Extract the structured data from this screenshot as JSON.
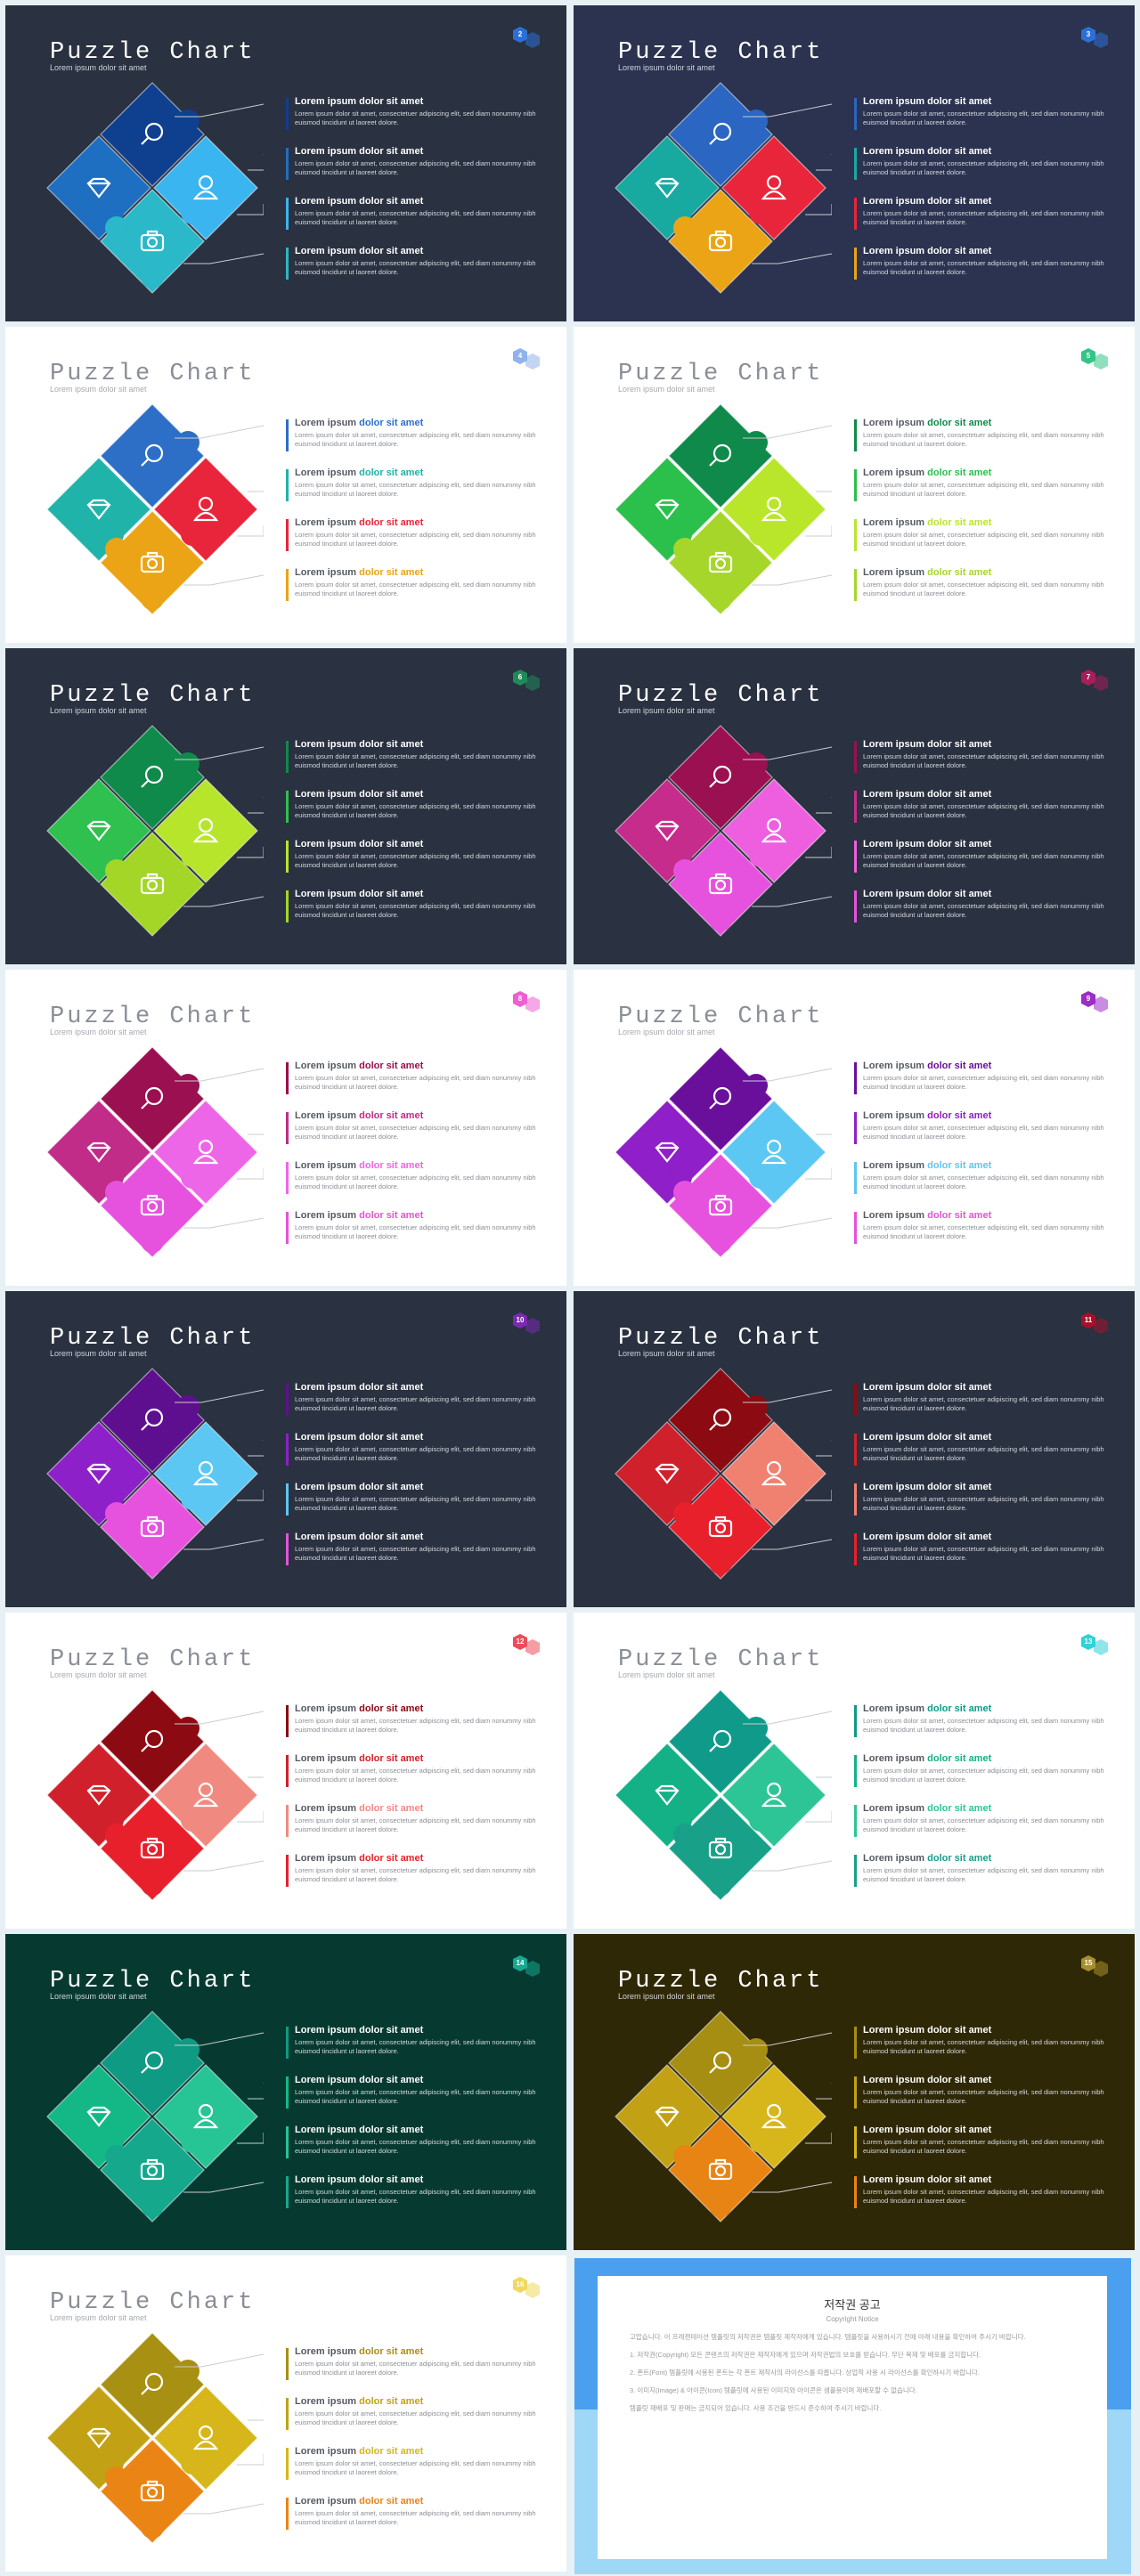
{
  "title": "Puzzle Chart",
  "subtitle": "Lorem ipsum dolor sit amet",
  "item_heading_plain": "Lorem ipsum ",
  "item_heading_accent": "dolor sit amet",
  "item_body": "Lorem ipsum dolor sit amet, consectetuer adipiscing elit, sed diam nonummy nibh euismod tincidunt ut laoreet dolore.",
  "icons": [
    "magnifier-icon",
    "diamond-icon",
    "person-icon",
    "camera-icon"
  ],
  "slides": [
    {
      "num": "2",
      "bg": "#2a3140",
      "dark": true,
      "badge": "#2c6fd6",
      "colors": [
        "#0f3f8f",
        "#1e6fc1",
        "#3ab5f0",
        "#2bb8c8"
      ]
    },
    {
      "num": "3",
      "bg": "#2b3350",
      "dark": true,
      "badge": "#2c6fd6",
      "colors": [
        "#2a66c2",
        "#18a9a0",
        "#e8253a",
        "#eaa415"
      ]
    },
    {
      "num": "4",
      "bg": "#ffffff",
      "dark": false,
      "badge": "#8fb3ea",
      "colors": [
        "#2d6fc6",
        "#20b3aa",
        "#e8253a",
        "#eaa415"
      ]
    },
    {
      "num": "5",
      "bg": "#ffffff",
      "dark": false,
      "badge": "#35c486",
      "colors": [
        "#0f8a4a",
        "#2bbf4c",
        "#b9e62a",
        "#a6d62a"
      ]
    },
    {
      "num": "6",
      "bg": "#2a3140",
      "dark": true,
      "badge": "#1e8a5a",
      "colors": [
        "#0f8a4a",
        "#2fc050",
        "#b7e52c",
        "#a3d626"
      ]
    },
    {
      "num": "7",
      "bg": "#2a3140",
      "dark": true,
      "badge": "#a81e5a",
      "colors": [
        "#9a1050",
        "#c52c8c",
        "#ee5fe0",
        "#e652dd"
      ]
    },
    {
      "num": "8",
      "bg": "#ffffff",
      "dark": false,
      "badge": "#ee5fd2",
      "colors": [
        "#9a1050",
        "#c02c88",
        "#ee66e8",
        "#e652dd"
      ]
    },
    {
      "num": "9",
      "bg": "#ffffff",
      "dark": false,
      "badge": "#9b2ec7",
      "colors": [
        "#6a0f9c",
        "#8f1fc8",
        "#5cc7f2",
        "#e652dd"
      ]
    },
    {
      "num": "10",
      "bg": "#2a3140",
      "dark": true,
      "badge": "#7a2ab0",
      "colors": [
        "#5e0f90",
        "#8e20c9",
        "#5cc7f2",
        "#e652dd"
      ]
    },
    {
      "num": "11",
      "bg": "#2a3140",
      "dark": true,
      "badge": "#a8102a",
      "colors": [
        "#8c0a12",
        "#d0202c",
        "#f08070",
        "#e8202c"
      ]
    },
    {
      "num": "12",
      "bg": "#ffffff",
      "dark": false,
      "badge": "#ec4d5a",
      "colors": [
        "#8c0a12",
        "#d0202c",
        "#f08a80",
        "#e8202c"
      ]
    },
    {
      "num": "13",
      "bg": "#ffffff",
      "dark": false,
      "badge": "#34d0d8",
      "colors": [
        "#109a8a",
        "#14b086",
        "#2dc596",
        "#18a088"
      ]
    },
    {
      "num": "14",
      "bg": "#063a30",
      "dark": true,
      "badge": "#17a890",
      "colors": [
        "#0f9a84",
        "#14b886",
        "#27c496",
        "#15a88c"
      ]
    },
    {
      "num": "15",
      "bg": "#2f2806",
      "dark": true,
      "badge": "#a98f2a",
      "colors": [
        "#a68e12",
        "#c2a214",
        "#d6b61a",
        "#e88414"
      ]
    },
    {
      "num": "16",
      "bg": "#ffffff",
      "dark": false,
      "badge": "#f0d860",
      "colors": [
        "#a89012",
        "#c2a214",
        "#d6b61a",
        "#ea8414"
      ]
    }
  ],
  "notice": {
    "title": "저작권 공고",
    "subtitle": "Copyright Notice",
    "paragraphs": [
      "고맙습니다. 이 프레젠테이션 템플릿의 저작권은 템플릿 제작자에게 있습니다. 템플릿을 사용하시기 전에 아래 내용을 확인하여 주시기 바랍니다.",
      "1. 저작권(Copyright) 모든 콘텐츠의 저작권은 제작자에게 있으며 저작권법의 보호를 받습니다. 무단 복제 및 배포를 금지합니다.",
      "2. 폰트(Font) 템플릿에 사용된 폰트는 각 폰트 제작사의 라이선스를 따릅니다. 상업적 사용 시 라이선스를 확인하시기 바랍니다.",
      "3. 이미지(Image) & 아이콘(Icon) 템플릿에 사용된 이미지와 아이콘은 샘플용이며 재배포할 수 없습니다.",
      "템플릿 재배포 및 판매는 금지되어 있습니다. 사용 조건을 반드시 준수하여 주시기 바랍니다."
    ]
  }
}
